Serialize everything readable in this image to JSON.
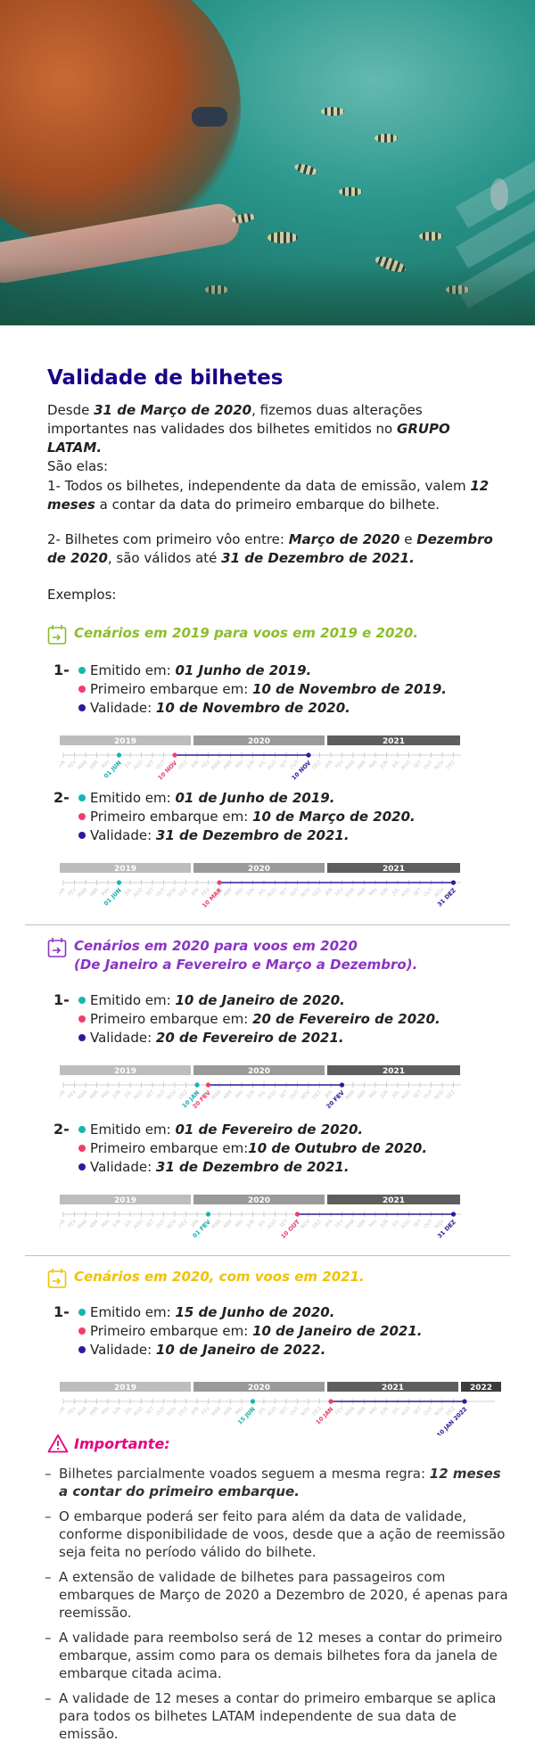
{
  "hero": {
    "alt": "hero-photo"
  },
  "title": "Validade de bilhetes",
  "intro": {
    "p1_a": "Desde ",
    "p1_b": "31 de Março de 2020",
    "p1_c": ", fizemos duas alterações importantes nas validades dos bilhetes emitidos no ",
    "p1_d": "GRUPO LATAM.",
    "p1_e": "São elas:",
    "p2_a": "1- Todos os bilhetes, independente da data de emissão, valem ",
    "p2_b": "12 meses",
    "p2_c": " a contar da data do primeiro embarque do bilhete.",
    "p3_a": "2- Bilhetes com primeiro vôo entre: ",
    "p3_b": "Março de 2020",
    "p3_c": " e ",
    "p3_d": "Dezembro de 2020",
    "p3_e": ", são válidos até ",
    "p3_f": "31 de Dezembro de 2021.",
    "p4": "Exemplos:"
  },
  "labels": {
    "emitido": "Emitido em: ",
    "embarque": "Primeiro embarque em: ",
    "embarque_tight": "Primeiro embarque em:",
    "validade": "Validade: "
  },
  "colors": {
    "emit": "#16b5b0",
    "embark": "#ef3e6d",
    "valid": "#2a1c9c",
    "green": "#8cbd2b",
    "purple": "#8a34c4",
    "yellow": "#f2c100",
    "navy": "#1b0088"
  },
  "sections": [
    {
      "title_1": "Cenários em 2019 para voos em 2019 e 2020.",
      "title_2": "",
      "examples": [
        {
          "num": "1-",
          "emit": "01 Junho de 2019.",
          "embark": "10 de Novembro de 2019.",
          "valid": "10 de Novembro de 2020."
        },
        {
          "num": "2-",
          "emit": "01 de Junho de 2019.",
          "embark": "10 de Março de 2020.",
          "valid": "31 de Dezembro de 2021."
        }
      ]
    },
    {
      "title_1": "Cenários em 2020 para voos em 2020",
      "title_2": "(De Janeiro a Fevereiro e Março a Dezembro).",
      "examples": [
        {
          "num": "1-",
          "emit": "10 de Janeiro de 2020.",
          "embark": "20 de Fevereiro de 2020.",
          "valid": "20 de Fevereiro de 2021."
        },
        {
          "num": "2-",
          "emit": "01 de Fevereiro de 2020.",
          "embark": "10 de Outubro de 2020.",
          "valid": "31 de Dezembro de 2021."
        }
      ]
    },
    {
      "title_1": "Cenários em 2020, com voos em 2021.",
      "title_2": "",
      "examples": [
        {
          "num": "1-",
          "emit": "15 de Junho de 2020.",
          "embark": "10 de Janeiro de 2021.",
          "valid": "10 de Janeiro de 2022."
        }
      ]
    }
  ],
  "months": [
    "JAN",
    "FEV",
    "MAR",
    "ABR",
    "MAI",
    "JUN",
    "JUL",
    "AGO",
    "SET",
    "OUT",
    "NOV",
    "DEZ"
  ],
  "timelines": [
    {
      "years": [
        "2019",
        "2020",
        "2021"
      ],
      "start": 0,
      "emit": 5,
      "embark": 10,
      "valid": 22,
      "emit_label": "01 JUN",
      "embark_label": "10 NOV",
      "valid_label": "10 NOV"
    },
    {
      "years": [
        "2019",
        "2020",
        "2021"
      ],
      "start": 0,
      "emit": 5,
      "embark": 14,
      "valid": 35,
      "emit_label": "01 JUN",
      "embark_label": "10 MAR",
      "valid_label": "31 DEZ"
    },
    {
      "years": [
        "2019",
        "2020",
        "2021"
      ],
      "start": 0,
      "emit": 12,
      "embark": 13,
      "valid": 25,
      "emit_label": "10 JAN",
      "embark_label": "20 FEV",
      "valid_label": "20 FEV"
    },
    {
      "years": [
        "2019",
        "2020",
        "2021"
      ],
      "start": 0,
      "emit": 13,
      "embark": 21,
      "valid": 35,
      "emit_label": "01 FEV",
      "embark_label": "10 OUT",
      "valid_label": "31 DEZ"
    },
    {
      "years": [
        "2019",
        "2020",
        "2021",
        "2022"
      ],
      "start": 0,
      "emit": 17,
      "embark": 24,
      "valid": 36,
      "emit_label": "15 JUN",
      "embark_label": "10 JAN",
      "valid_label": "10 JAN 2022"
    }
  ],
  "important": {
    "title": "Importante:",
    "b1_a": "Bilhetes parcialmente voados seguem a mesma regra: ",
    "b1_b": "12 meses a contar do primeiro embarque.",
    "b2": "O embarque poderá ser feito para além da data de validade, conforme disponibilidade de voos, desde que a ação de reemissão seja feita no período válido do bilhete.",
    "b3": "A extensão de validade de bilhetes para passageiros com embarques de Março de 2020 a Dezembro de 2020, é apenas para reemissão.",
    "b4": "A validade para reembolso será de 12 meses a contar do primeiro embarque, assim como para os demais bilhetes fora da janela de embarque citada acima.",
    "b5": "A validade de 12 meses a contar do primeiro embarque se aplica para todos os bilhetes LATAM independente de sua data de emissão."
  }
}
